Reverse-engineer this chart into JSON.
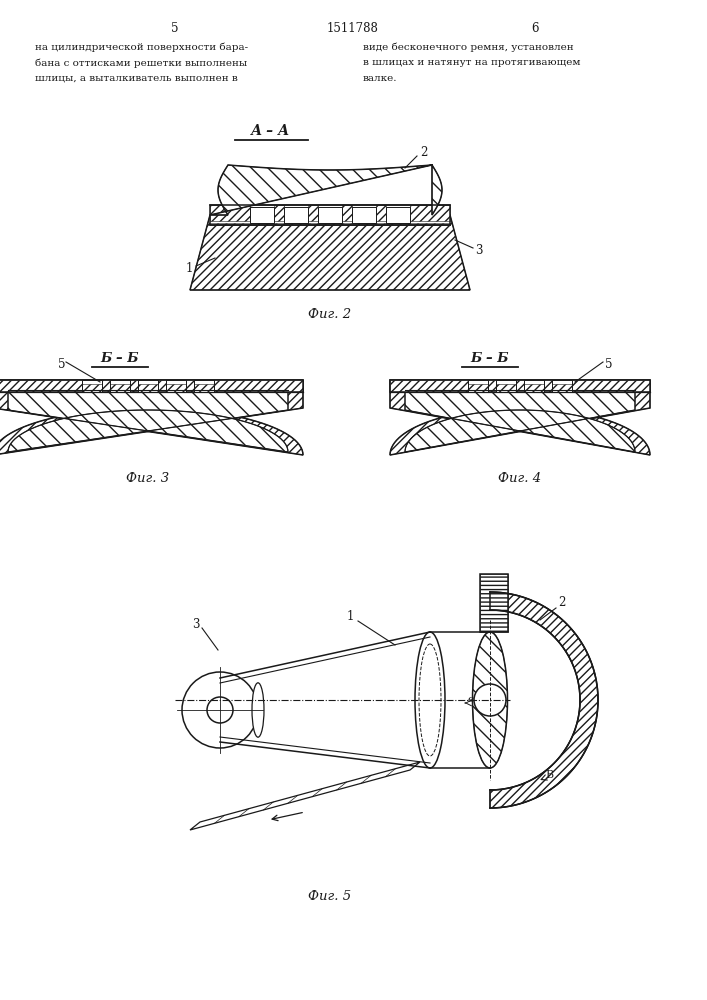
{
  "patent_number": "1511788",
  "page_left": "5",
  "page_right": "6",
  "text_left_1": "на цилиндрической поверхности бара-",
  "text_left_2": "бана с оттисками решетки выполнены",
  "text_left_3": "шлицы, а выталкиватель выполнен в",
  "text_right_1": "виде бесконечного ремня, установлен",
  "text_right_2": "в шлицах и натянут на протягивающем",
  "text_right_3": "валке.",
  "fig2_caption": "Фиг. 2",
  "fig3_caption": "Фиг. 3",
  "fig4_caption": "Фиг. 4",
  "fig5_caption": "Фиг. 5",
  "label_AA": "А – А",
  "label_BB": "Б – Б",
  "bg_color": "#ffffff",
  "lc": "#1a1a1a"
}
